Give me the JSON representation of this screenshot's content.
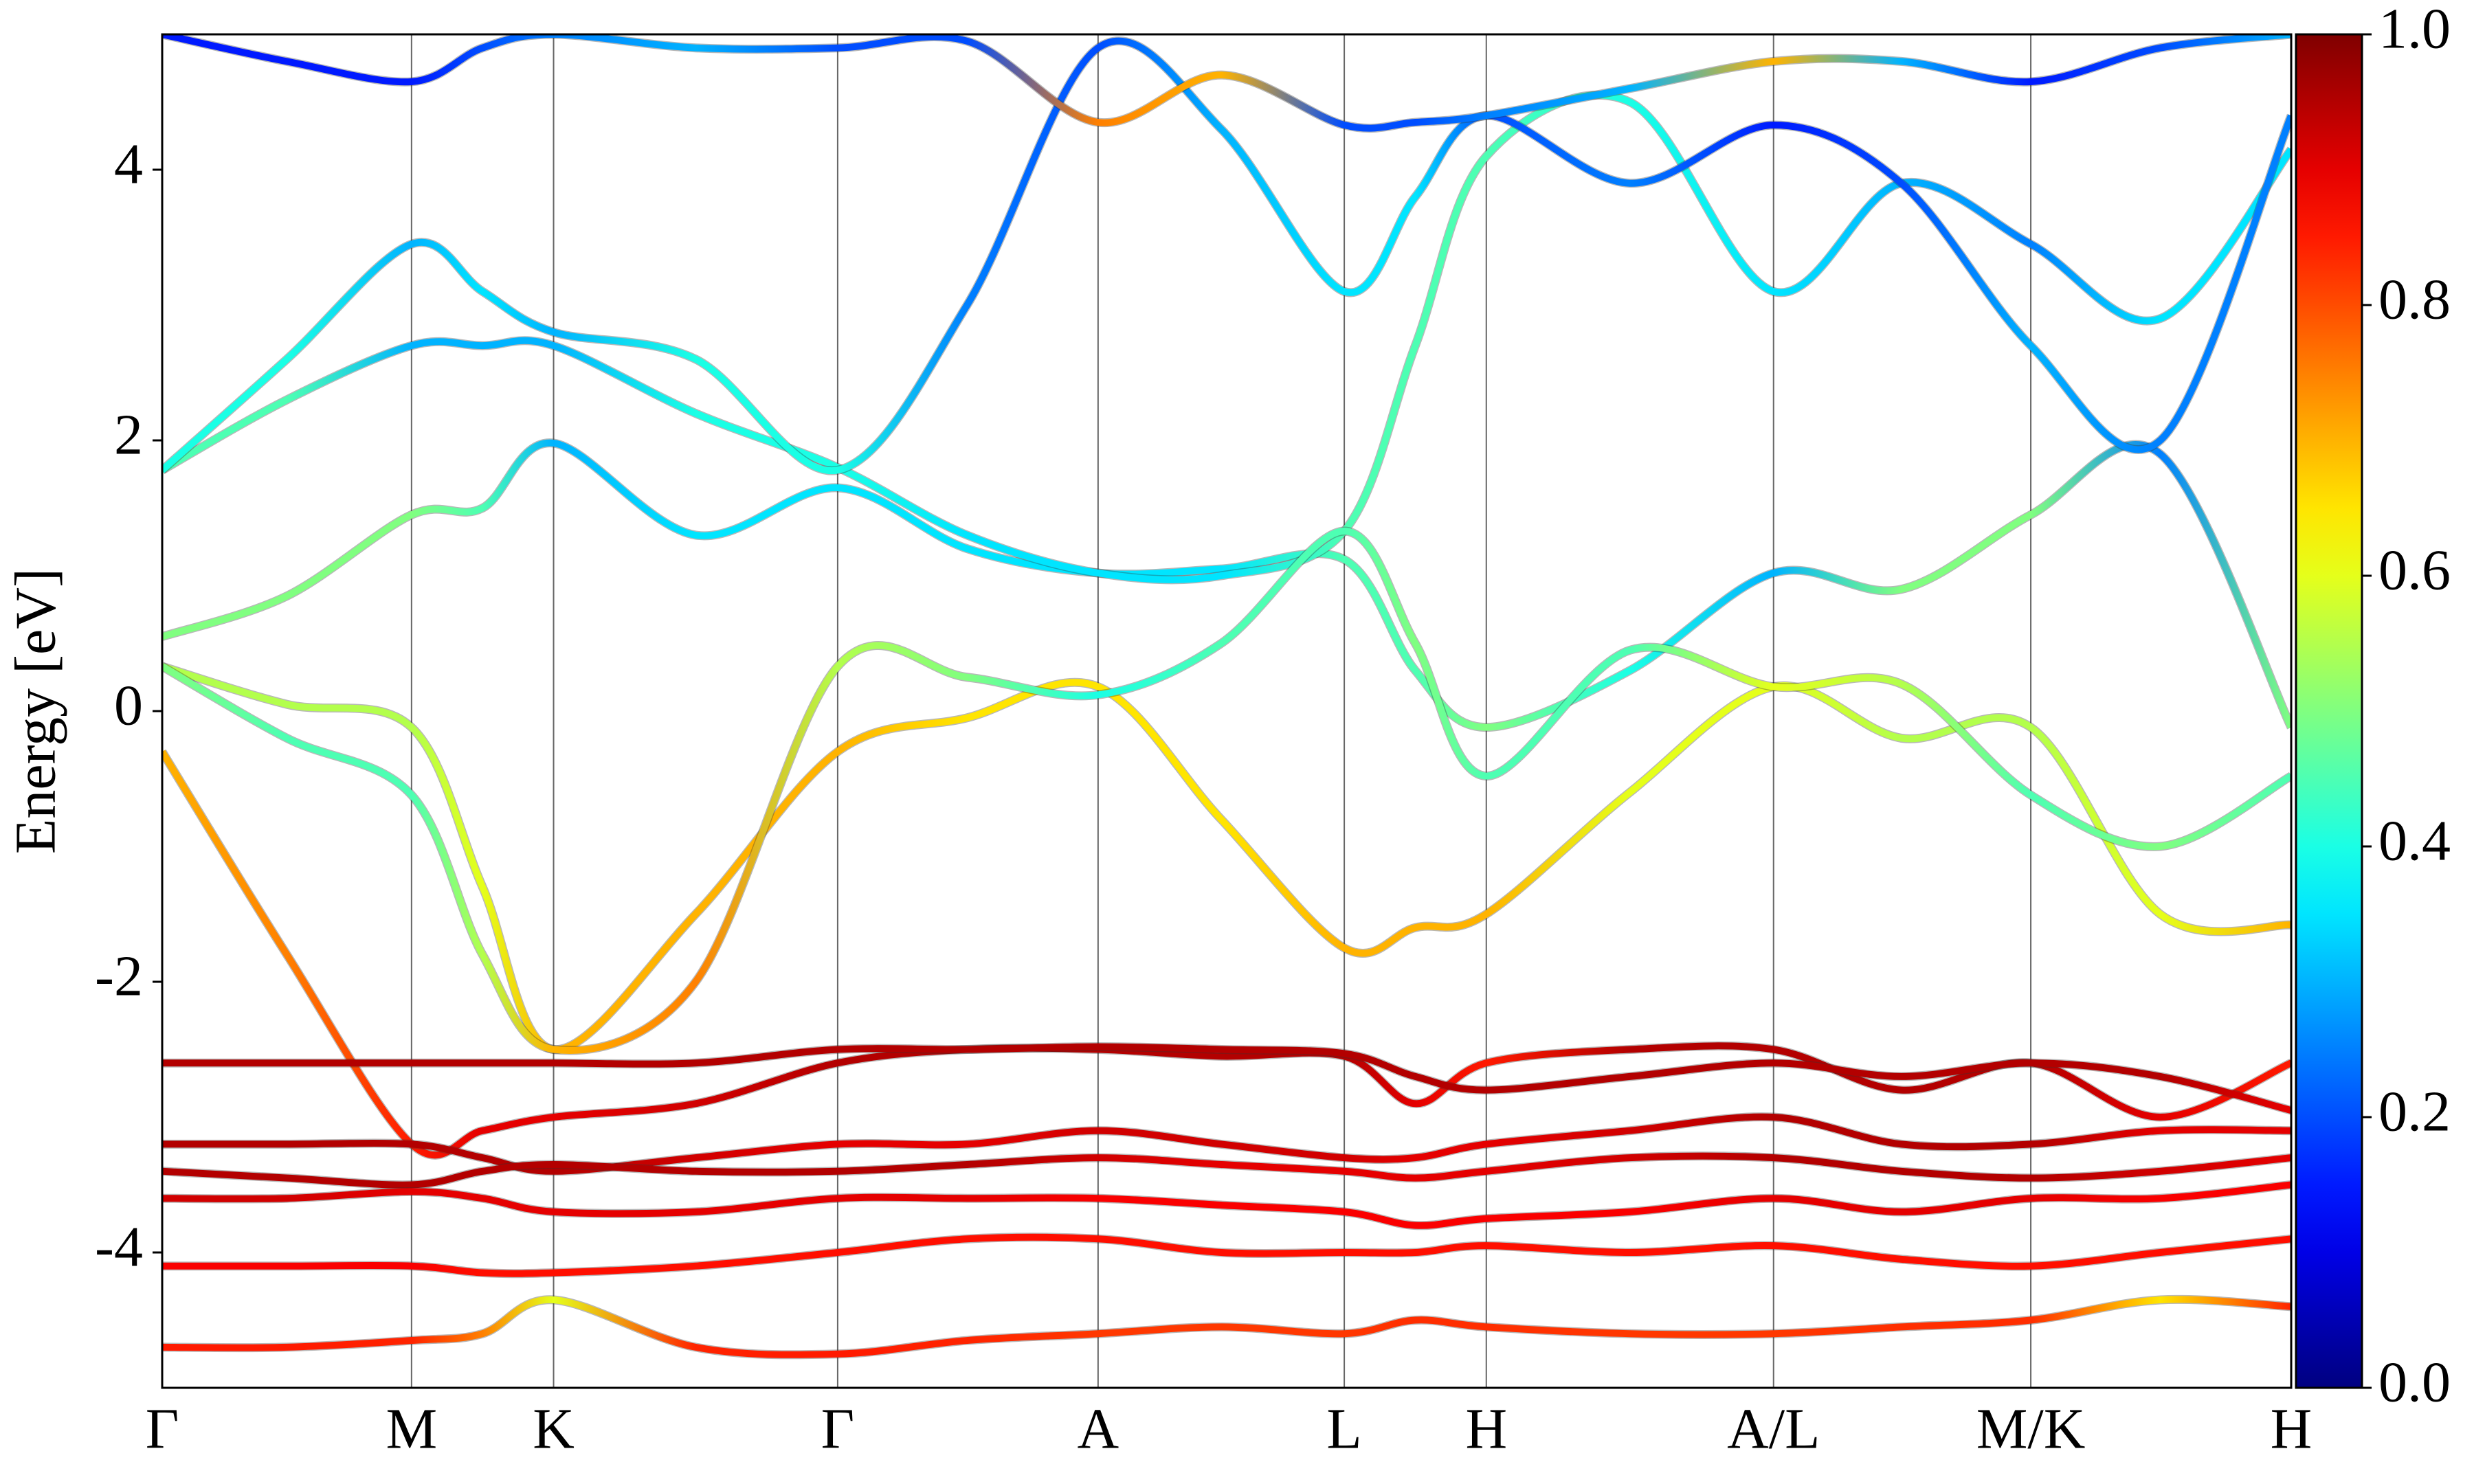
{
  "chart_data": {
    "type": "line",
    "ylabel": "Energy [eV]",
    "xlim": [
      0,
      1349
    ],
    "ylim": [
      -5,
      5
    ],
    "yticks": [
      -4,
      -2,
      0,
      2,
      4
    ],
    "xticks": [
      {
        "value": 0,
        "label": "Γ"
      },
      {
        "value": 158,
        "label": "M"
      },
      {
        "value": 248,
        "label": "K"
      },
      {
        "value": 428,
        "label": "Γ"
      },
      {
        "value": 593,
        "label": "A"
      },
      {
        "value": 749,
        "label": "L"
      },
      {
        "value": 839,
        "label": "H"
      },
      {
        "value": 1021,
        "label": "A/L"
      },
      {
        "value": 1184,
        "label": "M/K"
      },
      {
        "value": 1349,
        "label": "H"
      }
    ],
    "grid": true,
    "colormap": "jet",
    "colorbar": {
      "lim": [
        0,
        1
      ],
      "ticks": [
        {
          "value": 0,
          "label": "0.0"
        },
        0.2,
        0.4,
        0.6,
        0.8,
        {
          "value": 1,
          "label": "1.0"
        }
      ]
    },
    "x": [
      0,
      79,
      158,
      203,
      248,
      338,
      428,
      510,
      593,
      671,
      749,
      794,
      839,
      930,
      1021,
      1102,
      1184,
      1266,
      1349
    ],
    "series": [
      {
        "values": [
          0.33,
          0.05,
          -0.12,
          -1.3,
          -2.5,
          -1.5,
          -0.3,
          -0.05,
          0.18,
          -0.8,
          -1.75,
          -1.6,
          -1.5,
          -0.6,
          0.18,
          -0.2,
          -0.12,
          -1.5,
          -1.58
        ],
        "weights": [
          0.55,
          0.55,
          0.55,
          0.6,
          0.7,
          0.7,
          0.7,
          0.65,
          0.65,
          0.65,
          0.7,
          0.7,
          0.7,
          0.6,
          0.6,
          0.55,
          0.55,
          0.6,
          0.7
        ]
      },
      {
        "values": [
          0.55,
          0.85,
          1.45,
          1.5,
          1.98,
          1.3,
          1.65,
          1.2,
          1.02,
          1.05,
          1.12,
          0.3,
          -0.12,
          0.3,
          1.02,
          0.9,
          1.45,
          1.9,
          -0.12
        ],
        "weights": [
          0.5,
          0.5,
          0.5,
          0.45,
          0.3,
          0.35,
          0.35,
          0.35,
          0.35,
          0.35,
          0.45,
          0.45,
          0.5,
          0.4,
          0.3,
          0.5,
          0.5,
          0.25,
          0.5
        ]
      },
      {
        "values": [
          1.78,
          2.3,
          2.7,
          2.7,
          2.7,
          2.2,
          1.8,
          1.3,
          1.02,
          1.0,
          1.33,
          2.7,
          4.1,
          4.5,
          3.1,
          3.9,
          3.45,
          2.9,
          4.15
        ],
        "weights": [
          0.45,
          0.45,
          0.3,
          0.3,
          0.3,
          0.4,
          0.4,
          0.35,
          0.35,
          0.35,
          0.45,
          0.45,
          0.45,
          0.4,
          0.35,
          0.3,
          0.25,
          0.35,
          0.35
        ]
      },
      {
        "values": [
          1.78,
          2.6,
          3.45,
          3.1,
          2.8,
          2.6,
          1.78,
          3.0,
          4.9,
          4.3,
          3.1,
          3.8,
          4.4,
          3.9,
          4.33,
          3.9,
          2.7,
          2.0,
          4.4
        ],
        "weights": [
          0.4,
          0.4,
          0.3,
          0.35,
          0.3,
          0.4,
          0.4,
          0.25,
          0.2,
          0.3,
          0.35,
          0.35,
          0.2,
          0.25,
          0.15,
          0.2,
          0.3,
          0.25,
          0.25
        ]
      },
      {
        "values": [
          -0.3,
          -1.8,
          -3.2,
          -3.1,
          -3.0,
          -2.9,
          -2.6,
          -2.5,
          -2.5,
          -2.55,
          -2.55,
          -2.9,
          -2.6,
          -2.5,
          -2.5,
          -2.8,
          -2.6,
          -3.0,
          -2.6
        ],
        "weights": [
          0.7,
          0.75,
          0.85,
          0.9,
          0.9,
          0.92,
          0.95,
          0.95,
          0.95,
          0.95,
          0.95,
          0.9,
          0.85,
          0.95,
          0.95,
          0.95,
          0.95,
          0.9,
          0.85
        ]
      },
      {
        "values": [
          0.33,
          -0.2,
          -0.62,
          -1.8,
          -2.5,
          -2.0,
          0.33,
          0.25,
          0.12,
          0.5,
          1.33,
          0.5,
          -0.48,
          0.45,
          0.18,
          0.2,
          -0.62,
          -1.0,
          -0.48
        ],
        "weights": [
          0.5,
          0.45,
          0.45,
          0.55,
          0.7,
          0.75,
          0.55,
          0.5,
          0.4,
          0.45,
          0.45,
          0.5,
          0.45,
          0.45,
          0.6,
          0.55,
          0.45,
          0.5,
          0.45
        ]
      },
      {
        "values": [
          -2.6,
          -2.6,
          -2.6,
          -2.6,
          -2.6,
          -2.6,
          -2.5,
          -2.5,
          -2.48,
          -2.5,
          -2.53,
          -2.7,
          -2.8,
          -2.7,
          -2.6,
          -2.7,
          -2.6,
          -2.7,
          -2.95
        ],
        "weights": [
          0.95,
          0.95,
          0.95,
          0.95,
          0.95,
          0.95,
          0.95,
          0.95,
          0.95,
          0.95,
          0.95,
          0.95,
          0.95,
          0.95,
          0.95,
          0.95,
          0.95,
          0.95,
          0.9
        ]
      },
      {
        "values": [
          -3.2,
          -3.2,
          -3.2,
          -3.3,
          -3.4,
          -3.3,
          -3.2,
          -3.2,
          -3.1,
          -3.2,
          -3.3,
          -3.3,
          -3.2,
          -3.1,
          -3.0,
          -3.2,
          -3.2,
          -3.1,
          -3.1
        ],
        "weights": [
          0.95,
          0.95,
          0.95,
          0.95,
          0.95,
          0.92,
          0.9,
          0.9,
          0.92,
          0.92,
          0.92,
          0.9,
          0.9,
          0.92,
          0.95,
          0.95,
          0.95,
          0.9,
          0.9
        ]
      },
      {
        "values": [
          -3.4,
          -3.45,
          -3.5,
          -3.4,
          -3.35,
          -3.4,
          -3.4,
          -3.35,
          -3.3,
          -3.35,
          -3.4,
          -3.45,
          -3.4,
          -3.3,
          -3.3,
          -3.4,
          -3.45,
          -3.4,
          -3.3
        ],
        "weights": [
          0.95,
          0.95,
          0.95,
          0.95,
          0.95,
          0.95,
          0.95,
          0.95,
          0.92,
          0.9,
          0.9,
          0.9,
          0.9,
          0.92,
          0.95,
          0.95,
          0.95,
          0.92,
          0.9
        ]
      },
      {
        "values": [
          -3.6,
          -3.6,
          -3.55,
          -3.6,
          -3.7,
          -3.7,
          -3.6,
          -3.6,
          -3.6,
          -3.65,
          -3.7,
          -3.8,
          -3.75,
          -3.7,
          -3.6,
          -3.7,
          -3.6,
          -3.6,
          -3.5
        ],
        "weights": [
          0.92,
          0.92,
          0.9,
          0.9,
          0.9,
          0.9,
          0.9,
          0.9,
          0.88,
          0.88,
          0.88,
          0.88,
          0.88,
          0.88,
          0.9,
          0.9,
          0.9,
          0.88,
          0.88
        ]
      },
      {
        "values": [
          -4.1,
          -4.1,
          -4.1,
          -4.15,
          -4.15,
          -4.1,
          -4.0,
          -3.9,
          -3.9,
          -4.0,
          -4.0,
          -4.0,
          -3.95,
          -4.0,
          -3.95,
          -4.05,
          -4.1,
          -4.0,
          -3.9
        ],
        "weights": [
          0.88,
          0.88,
          0.88,
          0.86,
          0.86,
          0.86,
          0.86,
          0.86,
          0.86,
          0.86,
          0.86,
          0.86,
          0.86,
          0.86,
          0.86,
          0.86,
          0.86,
          0.86,
          0.86
        ]
      },
      {
        "values": [
          -4.7,
          -4.7,
          -4.65,
          -4.6,
          -4.35,
          -4.7,
          -4.75,
          -4.65,
          -4.6,
          -4.55,
          -4.6,
          -4.5,
          -4.55,
          -4.6,
          -4.6,
          -4.55,
          -4.5,
          -4.35,
          -4.4
        ],
        "weights": [
          0.85,
          0.85,
          0.84,
          0.75,
          0.6,
          0.84,
          0.85,
          0.84,
          0.82,
          0.82,
          0.82,
          0.83,
          0.83,
          0.82,
          0.82,
          0.83,
          0.83,
          0.65,
          0.84
        ]
      },
      {
        "values": [
          5.0,
          4.8,
          4.65,
          4.9,
          5.0,
          4.9,
          4.9,
          4.95,
          4.35,
          4.7,
          4.33,
          4.35,
          4.4,
          4.6,
          4.8,
          4.8,
          4.65,
          4.9,
          5.0
        ],
        "weights": [
          0.15,
          0.15,
          0.15,
          0.2,
          0.25,
          0.3,
          0.2,
          0.2,
          0.75,
          0.7,
          0.2,
          0.2,
          0.25,
          0.3,
          0.7,
          0.3,
          0.15,
          0.2,
          0.3
        ]
      }
    ]
  }
}
